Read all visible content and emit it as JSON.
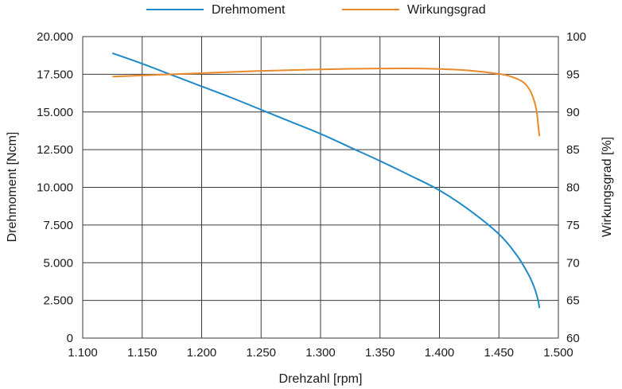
{
  "chart_data": {
    "type": "line",
    "xlabel": "Drehzahl [rpm]",
    "ylabel_left": "Drehmoment [Ncm]",
    "ylabel_right": "Wirkungsgrad [%]",
    "xlim": [
      1100,
      1500
    ],
    "ylim_left": [
      0,
      20000
    ],
    "ylim_right": [
      60,
      100
    ],
    "x_ticks": [
      1100,
      1150,
      1200,
      1250,
      1300,
      1350,
      1400,
      1450,
      1500
    ],
    "x_tick_labels": [
      "1.100",
      "1.150",
      "1.200",
      "1.250",
      "1.300",
      "1.350",
      "1.400",
      "1.450",
      "1.500"
    ],
    "y_left_ticks": [
      0,
      2500,
      5000,
      7500,
      10000,
      12500,
      15000,
      17500,
      20000
    ],
    "y_left_tick_labels": [
      "0",
      "2.500",
      "5.000",
      "7.500",
      "10.000",
      "12.500",
      "15.000",
      "17.500",
      "20.000"
    ],
    "y_right_ticks": [
      60,
      65,
      70,
      75,
      80,
      85,
      90,
      95,
      100
    ],
    "y_right_tick_labels": [
      "60",
      "65",
      "70",
      "75",
      "80",
      "85",
      "90",
      "95",
      "100"
    ],
    "grid": true,
    "legend_position": "top-center",
    "series": [
      {
        "name": "Drehmoment",
        "axis": "left",
        "color": "#1f8ac9",
        "x": [
          1125,
          1150,
          1175,
          1200,
          1225,
          1250,
          1275,
          1300,
          1325,
          1350,
          1375,
          1400,
          1425,
          1450,
          1465,
          1475,
          1480,
          1483,
          1484
        ],
        "y": [
          18900,
          18200,
          17450,
          16700,
          15950,
          15150,
          14350,
          13550,
          12650,
          11750,
          10800,
          9800,
          8500,
          6900,
          5500,
          4200,
          3300,
          2500,
          2000
        ]
      },
      {
        "name": "Wirkungsgrad",
        "axis": "right",
        "color": "#ea8a2a",
        "x": [
          1125,
          1150,
          1175,
          1200,
          1225,
          1250,
          1275,
          1300,
          1325,
          1350,
          1375,
          1400,
          1425,
          1450,
          1460,
          1470,
          1476,
          1480,
          1482,
          1483,
          1484
        ],
        "y": [
          94.7,
          94.85,
          95.0,
          95.15,
          95.3,
          95.45,
          95.55,
          95.65,
          95.72,
          95.77,
          95.78,
          95.7,
          95.5,
          95.05,
          94.7,
          94.0,
          92.9,
          91.3,
          89.8,
          88.3,
          86.8
        ]
      }
    ]
  }
}
